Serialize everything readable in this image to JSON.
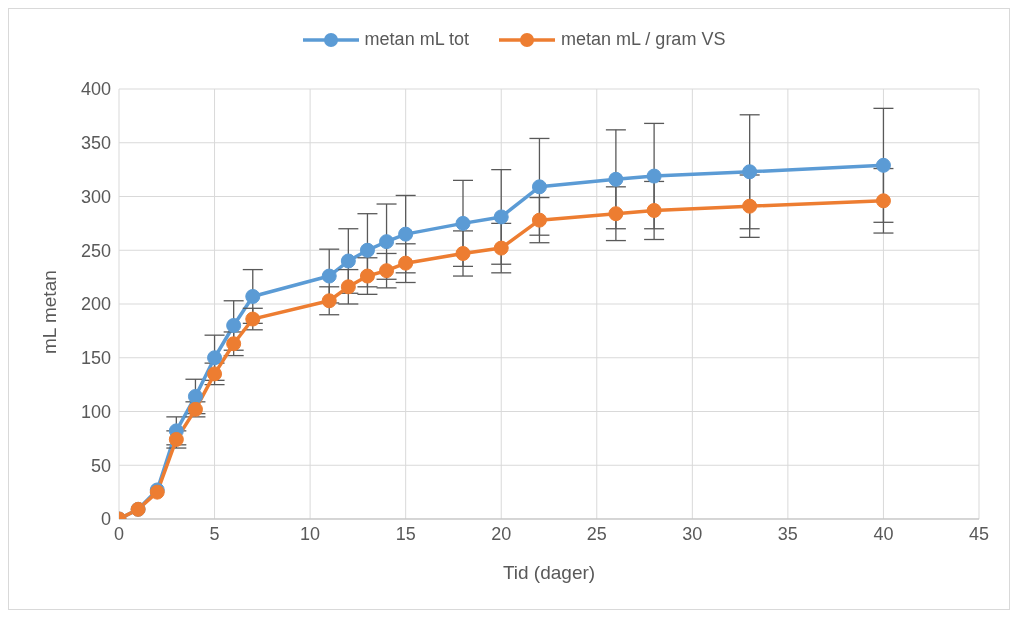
{
  "chart_data": {
    "type": "line",
    "xlabel": "Tid (dager)",
    "ylabel": "mL metan",
    "x": [
      0,
      1,
      2,
      3,
      4,
      5,
      6,
      7,
      11,
      12,
      13,
      14,
      15,
      18,
      20,
      22,
      26,
      28,
      33,
      40
    ],
    "series": [
      {
        "name": "metan mL tot",
        "color": "#5b9bd5",
        "values": [
          0,
          9,
          27,
          82,
          114,
          150,
          180,
          207,
          226,
          240,
          250,
          258,
          265,
          275,
          281,
          309,
          316,
          319,
          323,
          329
        ],
        "errors": [
          null,
          null,
          null,
          13,
          16,
          21,
          23,
          25,
          25,
          30,
          34,
          35,
          36,
          40,
          44,
          45,
          46,
          49,
          53,
          53
        ]
      },
      {
        "name": "metan mL / gram VS",
        "color": "#ed7d31",
        "values": [
          0,
          9,
          25,
          74,
          102,
          135,
          163,
          186,
          203,
          216,
          226,
          231,
          238,
          247,
          252,
          278,
          284,
          287,
          291,
          296
        ],
        "errors": [
          null,
          null,
          null,
          8,
          7,
          10,
          11,
          10,
          13,
          16,
          17,
          16,
          18,
          21,
          23,
          21,
          25,
          27,
          29,
          30
        ]
      }
    ],
    "xlim": [
      0,
      45
    ],
    "xticks": [
      0,
      5,
      10,
      15,
      20,
      25,
      30,
      35,
      40,
      45
    ],
    "ylim": [
      0,
      400
    ],
    "yticks": [
      0,
      50,
      100,
      150,
      200,
      250,
      300,
      350,
      400
    ],
    "grid": true,
    "legend": "top",
    "marker": "circle",
    "line_style": "solid"
  }
}
